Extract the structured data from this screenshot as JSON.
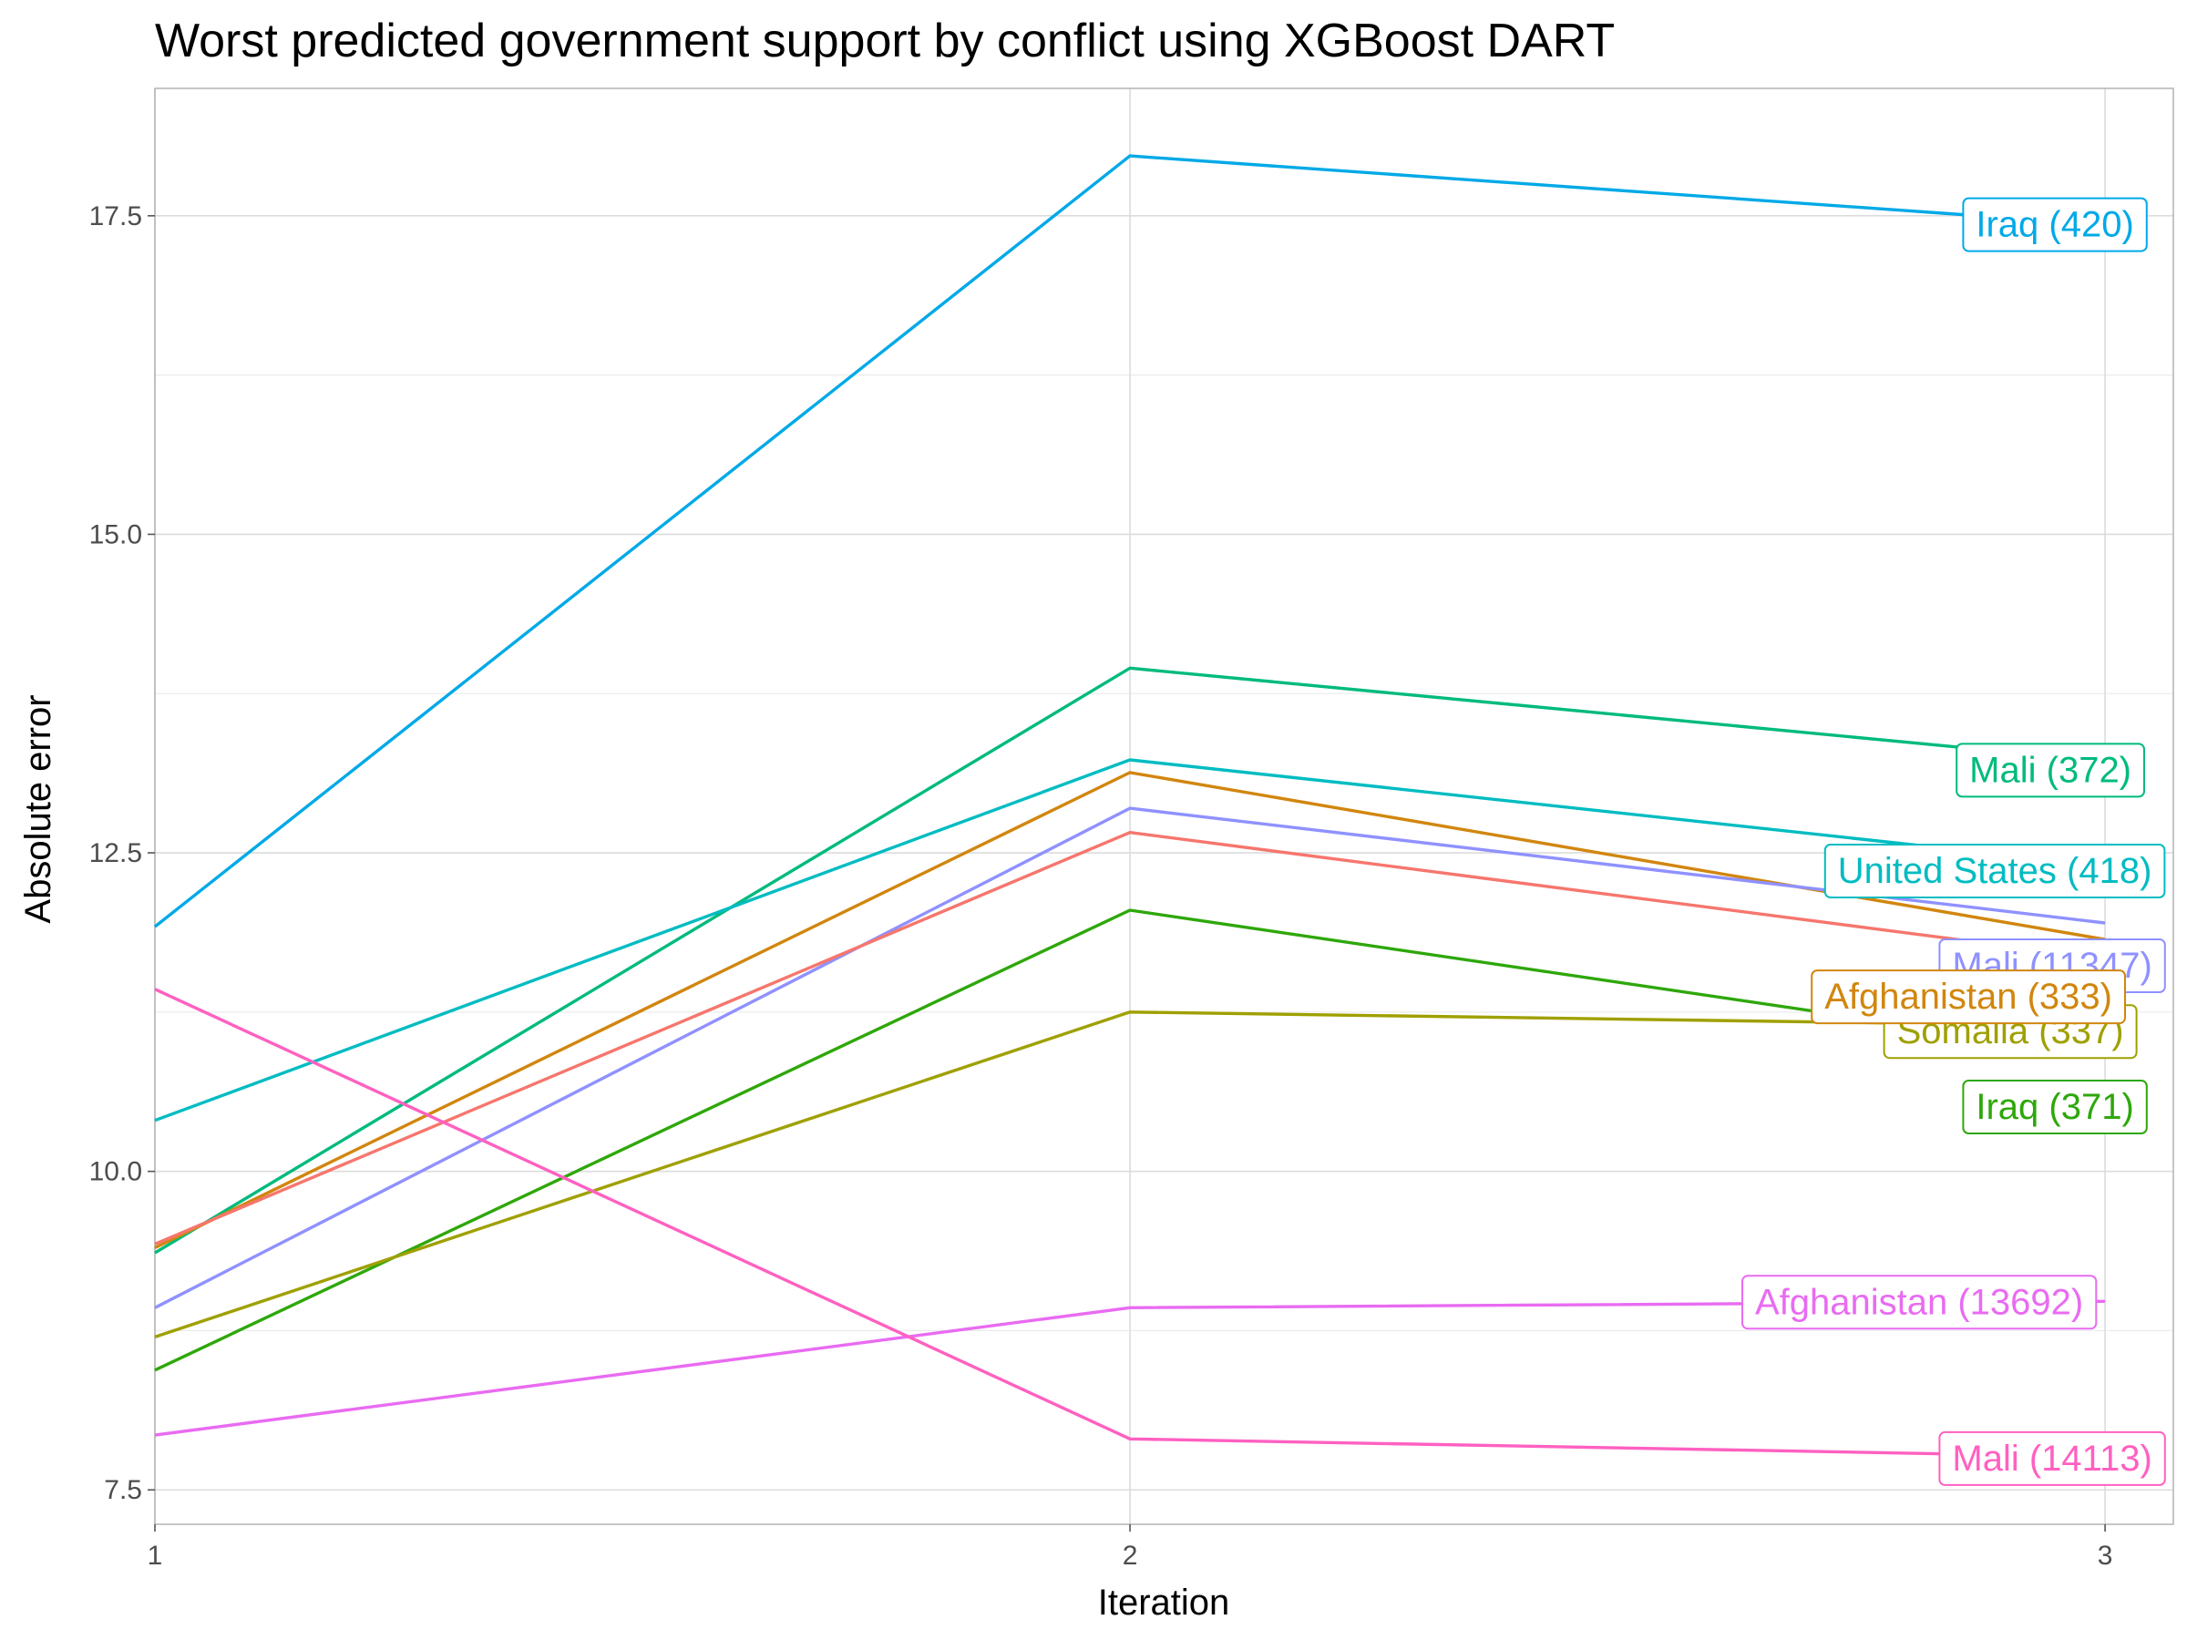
{
  "chart_data": {
    "type": "line",
    "title": "Worst predicted government support by conflict using XGBoost DART",
    "xlabel": "Iteration",
    "ylabel": "Absolute error",
    "x": [
      1,
      2,
      3
    ],
    "xticks": [
      "1",
      "2",
      "3"
    ],
    "yticks": [
      "7.5",
      "10.0",
      "12.5",
      "15.0",
      "17.5"
    ],
    "xlim": [
      1,
      3.07
    ],
    "ylim": [
      7.23,
      18.5
    ],
    "grid": true,
    "legend": "none",
    "series": [
      {
        "name": "Iraq (420)",
        "color": "#00A9E7",
        "values": [
          11.92,
          17.97,
          17.43
        ]
      },
      {
        "name": "Mali (372)",
        "color": "#00BA7E",
        "values": [
          9.36,
          13.95,
          13.22
        ]
      },
      {
        "name": "United States (418)",
        "color": "#00BCC2",
        "values": [
          10.4,
          13.23,
          12.4
        ]
      },
      {
        "name": "Afghanistan (333)",
        "color": "#D1860E",
        "values": [
          9.4,
          13.13,
          11.82
        ]
      },
      {
        "name": "Mali (11347)",
        "color": "#8F91FF",
        "values": [
          8.93,
          12.85,
          11.95
        ]
      },
      {
        "name": "",
        "color": "#F6766D",
        "values": [
          9.43,
          12.66,
          11.67
        ]
      },
      {
        "name": "Iraq (371)",
        "color": "#2EA70A",
        "values": [
          8.44,
          12.05,
          10.92
        ]
      },
      {
        "name": "Somalia (337)",
        "color": "#9FA000",
        "values": [
          8.7,
          11.25,
          11.14
        ]
      },
      {
        "name": "Afghanistan (13692)",
        "color": "#E96BF2",
        "values": [
          7.93,
          8.93,
          8.98
        ]
      },
      {
        "name": "Mali (14113)",
        "color": "#FF60C1",
        "values": [
          11.43,
          7.9,
          7.76
        ]
      }
    ]
  }
}
